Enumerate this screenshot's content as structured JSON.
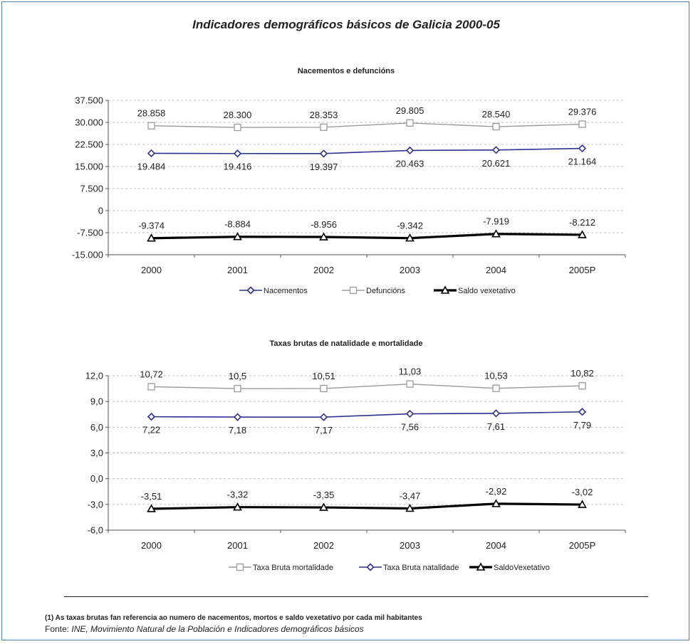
{
  "page": {
    "title": "Indicadores demográficos básicos de Galicia 2000-05",
    "note": "(1) As taxas brutas fan referencia ao numero de nacementos, mortos e saldo vexetativo por cada mil habitantes",
    "source_label": "Fonte: ",
    "source_text": "INE, Movimiento Natural de la Población e Indicadores demográficos básicos"
  },
  "chart_data": [
    {
      "type": "line",
      "title": "Nacementos e defuncións",
      "categories": [
        "2000",
        "2001",
        "2002",
        "2003",
        "2004",
        "2005P"
      ],
      "ylim": [
        -15000,
        37500
      ],
      "yticks": [
        37500,
        30000,
        22500,
        15000,
        7500,
        0,
        -7500,
        -15000
      ],
      "ytick_labels": [
        "37.500",
        "30.000",
        "22.500",
        "15.000",
        "7.500",
        "0",
        "-7.500",
        "-15.000"
      ],
      "grid": true,
      "legend_position": "bottom",
      "series": [
        {
          "name": "Nacementos",
          "values": [
            19484,
            19416,
            19397,
            20463,
            20621,
            21164
          ],
          "labels": [
            "19.484",
            "19.416",
            "19.397",
            "20.463",
            "20.621",
            "21.164"
          ],
          "label_position": "below",
          "color": "#2e3192",
          "marker": "diamond"
        },
        {
          "name": "Defuncións",
          "values": [
            28858,
            28300,
            28353,
            29805,
            28540,
            29376
          ],
          "labels": [
            "28.858",
            "28.300",
            "28.353",
            "29.805",
            "28.540",
            "29.376"
          ],
          "label_position": "above",
          "color": "#9a9a9a",
          "marker": "square"
        },
        {
          "name": "Saldo vexetativo",
          "values": [
            -9374,
            -8884,
            -8956,
            -9342,
            -7919,
            -8212
          ],
          "labels": [
            "-9.374",
            "-8.884",
            "-8.956",
            "-9.342",
            "-7.919",
            "-8.212"
          ],
          "label_position": "above",
          "color": "#000000",
          "marker": "triangle"
        }
      ]
    },
    {
      "type": "line",
      "title": "Taxas brutas de natalidade e mortalidade",
      "categories": [
        "2000",
        "2001",
        "2002",
        "2003",
        "2004",
        "2005P"
      ],
      "ylim": [
        -6,
        12
      ],
      "yticks": [
        12,
        9,
        6,
        3,
        0,
        -3,
        -6
      ],
      "ytick_labels": [
        "12,0",
        "9,0",
        "6,0",
        "3,0",
        "0,0",
        "-3,0",
        "-6,0"
      ],
      "grid": true,
      "legend_position": "bottom",
      "series": [
        {
          "name": "Taxa Bruta mortalidade",
          "values": [
            10.72,
            10.5,
            10.51,
            11.03,
            10.53,
            10.82
          ],
          "labels": [
            "10,72",
            "10,5",
            "10,51",
            "11,03",
            "10,53",
            "10,82"
          ],
          "label_position": "above",
          "color": "#9a9a9a",
          "marker": "square"
        },
        {
          "name": "Taxa Bruta natalidade",
          "values": [
            7.22,
            7.18,
            7.17,
            7.56,
            7.61,
            7.79
          ],
          "labels": [
            "7,22",
            "7,18",
            "7,17",
            "7,56",
            "7,61",
            "7,79"
          ],
          "label_position": "below",
          "color": "#2e3192",
          "marker": "diamond"
        },
        {
          "name": "SaldoVexetativo",
          "values": [
            -3.51,
            -3.32,
            -3.35,
            -3.47,
            -2.92,
            -3.02
          ],
          "labels": [
            "-3,51",
            "-3,32",
            "-3,35",
            "-3,47",
            "-2,92",
            "-3,02"
          ],
          "label_position": "above",
          "color": "#000000",
          "marker": "triangle"
        }
      ]
    }
  ]
}
